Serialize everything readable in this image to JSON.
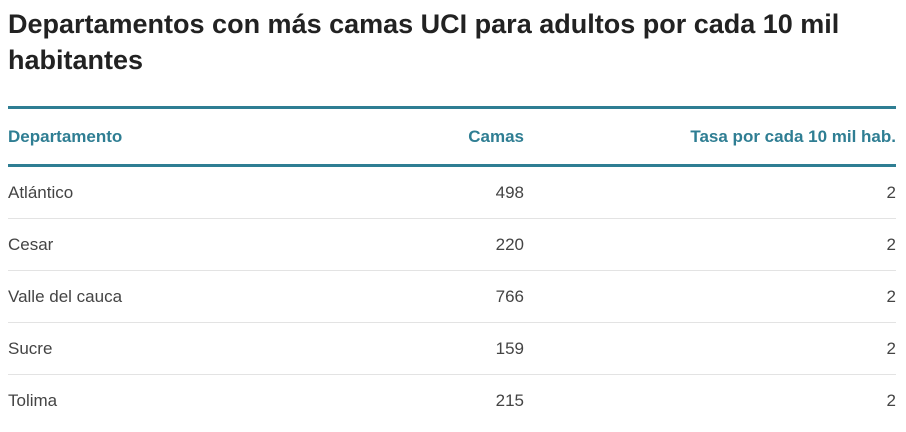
{
  "chart_data": {
    "type": "table",
    "title": "Departamentos con más camas UCI para adultos por cada 10 mil habitantes",
    "columns": [
      "Departamento",
      "Camas",
      "Tasa por cada 10 mil hab."
    ],
    "rows": [
      [
        "Atlántico",
        "498",
        "2"
      ],
      [
        "Cesar",
        "220",
        "2"
      ],
      [
        "Valle del cauca",
        "766",
        "2"
      ],
      [
        "Sucre",
        "159",
        "2"
      ],
      [
        "Tolima",
        "215",
        "2"
      ]
    ]
  },
  "colors": {
    "accent": "#2f7e93",
    "text": "#444444",
    "rule": "#e3e3e3"
  }
}
